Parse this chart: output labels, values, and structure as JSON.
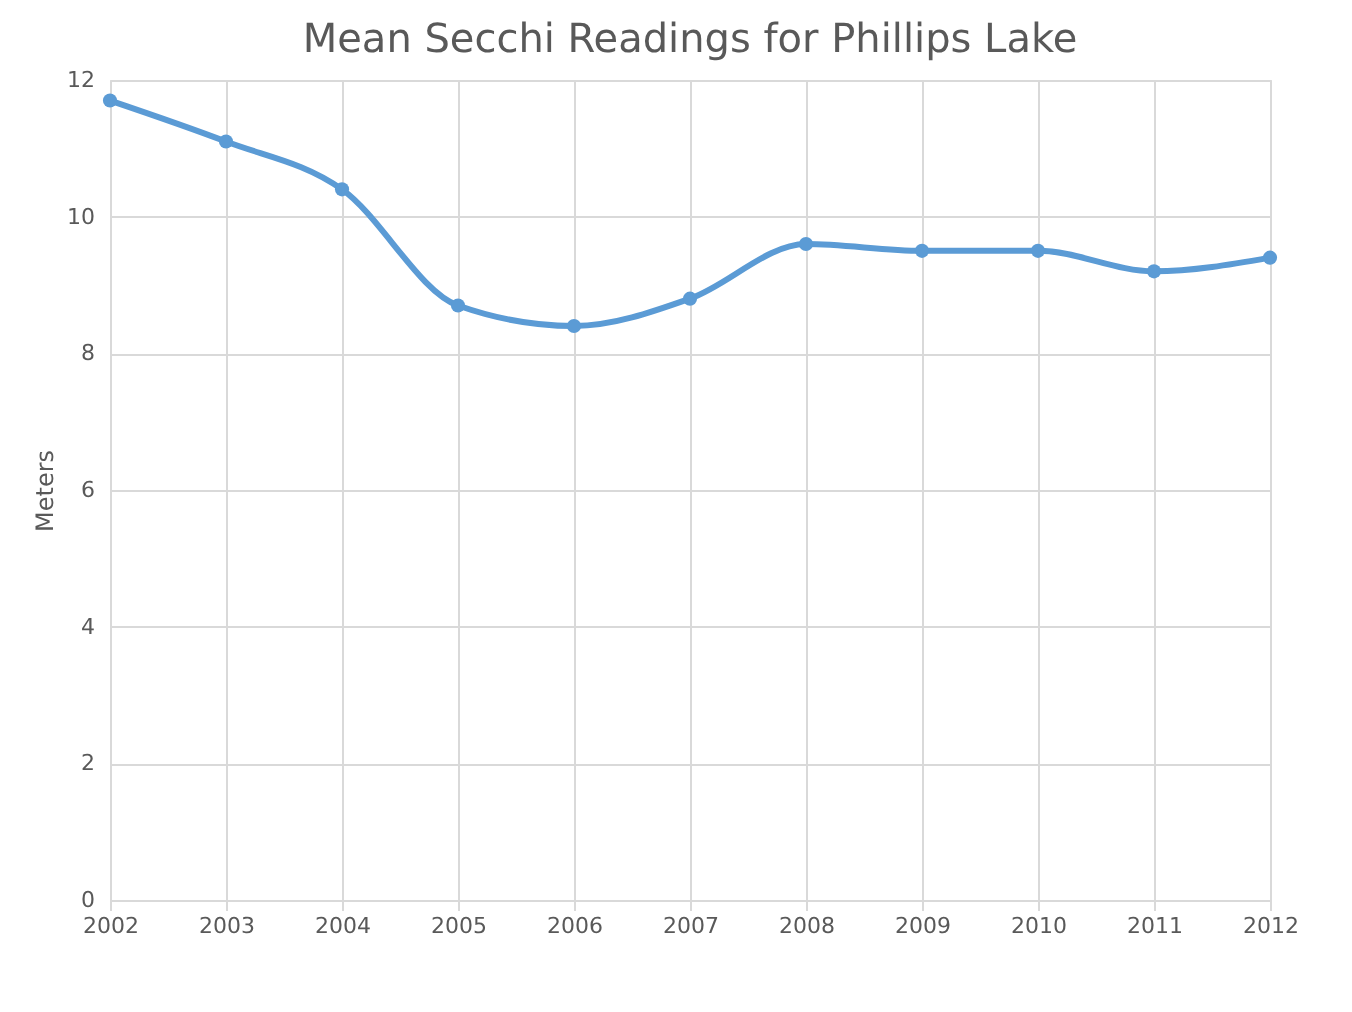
{
  "chart_data": {
    "type": "line",
    "title": "Mean Secchi Readings for Phillips Lake",
    "ylabel": "Meters",
    "x": [
      2002,
      2003,
      2004,
      2005,
      2006,
      2007,
      2008,
      2009,
      2010,
      2011,
      2012
    ],
    "series": [
      {
        "color": "#5b9bd5",
        "values": [
          11.7,
          11.1,
          10.4,
          8.7,
          8.4,
          8.8,
          9.6,
          9.5,
          9.5,
          9.2,
          9.4
        ]
      }
    ],
    "xlim": [
      2002,
      2012
    ],
    "xticks": [
      2002,
      2003,
      2004,
      2005,
      2006,
      2007,
      2008,
      2009,
      2010,
      2011,
      2012
    ],
    "ylim": [
      0,
      12
    ],
    "yticks": [
      0,
      2,
      4,
      6,
      8,
      10,
      12
    ],
    "grid": true,
    "marker": "circle",
    "line_style": "solid"
  }
}
